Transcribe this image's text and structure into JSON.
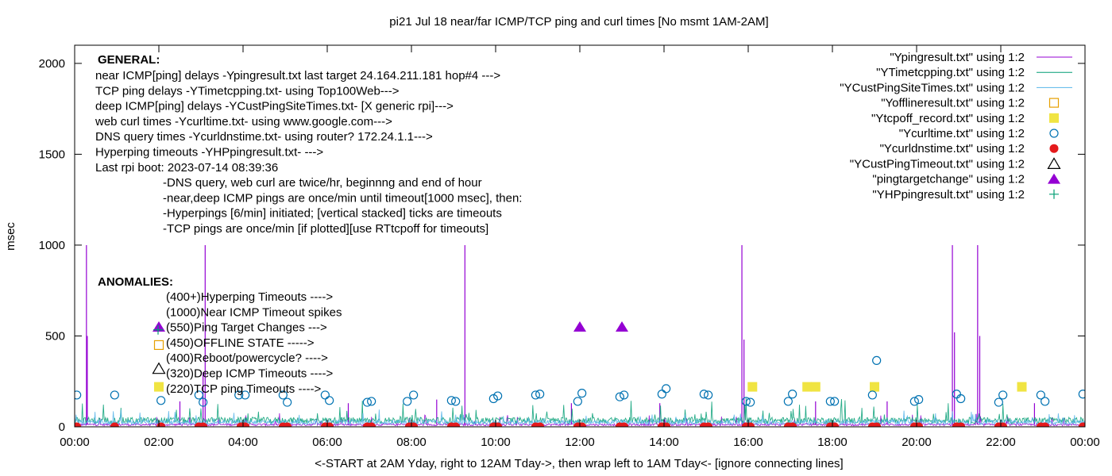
{
  "chart_data": {
    "type": "line",
    "title": "pi21 Jul 18  near/far ICMP/TCP ping and curl times [No msmt 1AM-2AM]",
    "xlabel": "<-START at 2AM Yday, right to 12AM Tday->, then wrap left to 1AM Tday<- [ignore connecting lines]",
    "ylabel": "msec",
    "x_unit": "hours",
    "xlim": [
      0,
      24
    ],
    "ylim": [
      0,
      2100
    ],
    "y_ticks": [
      0,
      500,
      1000,
      1500,
      2000
    ],
    "y_tick_labels": [
      "0",
      "500",
      "1000",
      "1500",
      "2000"
    ],
    "x_ticks": [
      0,
      2,
      4,
      6,
      8,
      10,
      12,
      14,
      16,
      18,
      20,
      22,
      24
    ],
    "x_tick_labels": [
      "00:00",
      "02:00",
      "04:00",
      "06:00",
      "08:00",
      "10:00",
      "12:00",
      "14:00",
      "16:00",
      "18:00",
      "20:00",
      "22:00",
      "00:00"
    ],
    "grid": false,
    "legend_position": "top-right",
    "series": [
      {
        "name": "\"Ypingresult.txt\" using 1:2",
        "style": "line",
        "color": "#9400d3",
        "baseline": 12,
        "spikes": [
          {
            "x": 0.28,
            "y": 1000
          },
          {
            "x": 0.3,
            "y": 500
          },
          {
            "x": 3.1,
            "y": 1000
          },
          {
            "x": 3.05,
            "y": 300
          },
          {
            "x": 9.27,
            "y": 1000
          },
          {
            "x": 15.85,
            "y": 1000
          },
          {
            "x": 15.9,
            "y": 480
          },
          {
            "x": 20.85,
            "y": 1000
          },
          {
            "x": 20.9,
            "y": 520
          },
          {
            "x": 21.45,
            "y": 1000
          },
          {
            "x": 21.5,
            "y": 500
          },
          {
            "x": 2.5,
            "y": 140
          },
          {
            "x": 6.5,
            "y": 130
          },
          {
            "x": 8.6,
            "y": 150
          },
          {
            "x": 11.8,
            "y": 130
          },
          {
            "x": 13.9,
            "y": 130
          },
          {
            "x": 17.6,
            "y": 140
          },
          {
            "x": 19.3,
            "y": 140
          },
          {
            "x": 22.8,
            "y": 130
          }
        ]
      },
      {
        "name": "\"YTimetcpping.txt\" using 1:2",
        "style": "line",
        "color": "#009e73",
        "baseline": 35
      },
      {
        "name": "\"YCustPingSiteTimes.txt\" using 1:2",
        "style": "line",
        "color": "#56b4e9",
        "baseline": 25
      },
      {
        "name": "\"Yofflineresult.txt\" using 1:2",
        "style": "open-square",
        "color": "#e69f00",
        "points": []
      },
      {
        "name": "\"Ytcpoff_record.txt\" using 1:2",
        "style": "filled-square",
        "color": "#f0e442",
        "points": [
          [
            16.1,
            220
          ],
          [
            17.4,
            220
          ],
          [
            17.6,
            220
          ],
          [
            19.0,
            220
          ],
          [
            22.5,
            220
          ]
        ]
      },
      {
        "name": "\"Ycurltime.txt\" using 1:2",
        "style": "open-circle",
        "color": "#0072b2",
        "points": [
          [
            0.05,
            175
          ],
          [
            0.95,
            175
          ],
          [
            2.05,
            145
          ],
          [
            2.95,
            175
          ],
          [
            3.05,
            135
          ],
          [
            3.9,
            175
          ],
          [
            4.05,
            175
          ],
          [
            4.95,
            175
          ],
          [
            5.05,
            135
          ],
          [
            5.95,
            175
          ],
          [
            6.05,
            145
          ],
          [
            6.95,
            135
          ],
          [
            7.05,
            140
          ],
          [
            7.9,
            140
          ],
          [
            8.05,
            175
          ],
          [
            8.95,
            145
          ],
          [
            9.05,
            140
          ],
          [
            9.95,
            155
          ],
          [
            10.05,
            170
          ],
          [
            10.95,
            175
          ],
          [
            11.05,
            180
          ],
          [
            11.95,
            140
          ],
          [
            12.05,
            185
          ],
          [
            12.95,
            165
          ],
          [
            13.05,
            175
          ],
          [
            13.95,
            180
          ],
          [
            14.05,
            210
          ],
          [
            14.95,
            180
          ],
          [
            15.05,
            175
          ],
          [
            15.95,
            140
          ],
          [
            16.05,
            135
          ],
          [
            16.95,
            140
          ],
          [
            17.05,
            180
          ],
          [
            17.95,
            140
          ],
          [
            18.05,
            140
          ],
          [
            18.95,
            175
          ],
          [
            19.05,
            365
          ],
          [
            19.95,
            140
          ],
          [
            20.05,
            150
          ],
          [
            20.95,
            180
          ],
          [
            21.05,
            155
          ],
          [
            21.95,
            135
          ],
          [
            22.05,
            175
          ],
          [
            22.95,
            175
          ],
          [
            23.05,
            140
          ],
          [
            23.95,
            180
          ]
        ]
      },
      {
        "name": "\"Ycurldnstime.txt\" using 1:2",
        "style": "filled-circle",
        "color": "#e41a1c",
        "points": [
          [
            0.05,
            0
          ],
          [
            0.95,
            0
          ],
          [
            2.05,
            0
          ],
          [
            2.95,
            0
          ],
          [
            3.05,
            0
          ],
          [
            3.95,
            0
          ],
          [
            4.05,
            0
          ],
          [
            4.95,
            0
          ],
          [
            5.05,
            0
          ],
          [
            5.95,
            0
          ],
          [
            6.05,
            0
          ],
          [
            6.95,
            0
          ],
          [
            7.05,
            0
          ],
          [
            7.95,
            0
          ],
          [
            8.05,
            0
          ],
          [
            8.95,
            0
          ],
          [
            9.05,
            0
          ],
          [
            9.95,
            0
          ],
          [
            10.05,
            0
          ],
          [
            10.95,
            0
          ],
          [
            11.05,
            0
          ],
          [
            11.95,
            0
          ],
          [
            12.05,
            0
          ],
          [
            12.95,
            0
          ],
          [
            13.05,
            0
          ],
          [
            13.95,
            0
          ],
          [
            14.05,
            0
          ],
          [
            14.95,
            0
          ],
          [
            15.05,
            0
          ],
          [
            15.95,
            0
          ],
          [
            16.05,
            0
          ],
          [
            16.95,
            0
          ],
          [
            17.05,
            0
          ],
          [
            17.95,
            0
          ],
          [
            18.05,
            0
          ],
          [
            18.95,
            0
          ],
          [
            19.05,
            0
          ],
          [
            19.95,
            0
          ],
          [
            20.05,
            0
          ],
          [
            20.95,
            0
          ],
          [
            21.05,
            0
          ],
          [
            21.95,
            0
          ],
          [
            22.05,
            0
          ],
          [
            22.95,
            0
          ],
          [
            23.05,
            0
          ],
          [
            23.95,
            0
          ]
        ]
      },
      {
        "name": "\"YCustPingTimeout.txt\" using 1:2",
        "style": "open-triangle",
        "color": "#000000",
        "points": []
      },
      {
        "name": "\"pingtargetchange\" using 1:2",
        "style": "filled-triangle",
        "color": "#9400d3",
        "points": [
          [
            12.0,
            550
          ],
          [
            13.0,
            550
          ]
        ]
      },
      {
        "name": "\"YHPpingresult.txt\" using 1:2",
        "style": "plus",
        "color": "#009e73",
        "points": []
      }
    ],
    "annotations": {
      "general_heading": "GENERAL:",
      "general_lines": [
        "near ICMP[ping] delays -Ypingresult.txt last target 24.164.211.181 hop#4 --->",
        "TCP ping delays -YTimetcpping.txt- using Top100Web--->",
        "deep ICMP[ping] delays -YCustPingSiteTimes.txt- [X generic rpi]--->",
        "web curl times -Ycurltime.txt- using www.google.com--->",
        "DNS query times -Ycurldnstime.txt- using router? 172.24.1.1--->",
        "Hyperping timeouts -YHPpingresult.txt- --->",
        "Last rpi boot: 2023-07-14 08:39:36"
      ],
      "general_notes": [
        "-DNS query, web curl are twice/hr, beginnng and end of hour",
        "-near,deep ICMP pings are once/min until timeout[1000 msec], then:",
        "  -Hyperpings [6/min] initiated; [vertical stacked] ticks are timeouts",
        "-TCP pings are once/min [if plotted][use RTtcpoff for timeouts]"
      ],
      "anomalies_heading": "ANOMALIES:",
      "anomaly_lines": [
        {
          "text": "(400+)Hyperping Timeouts ---->",
          "marker": "",
          "marker_value": 0
        },
        {
          "text": "(1000)Near ICMP Timeout spikes",
          "marker": "",
          "marker_value": 0
        },
        {
          "text": "(550)Ping Target Changes --->",
          "marker": "filled-triangle",
          "marker_value": 550
        },
        {
          "text": "(450)OFFLINE STATE ----->",
          "marker": "open-square",
          "marker_value": 450
        },
        {
          "text": "(400)Reboot/powercycle? ---->",
          "marker": "",
          "marker_value": 0
        },
        {
          "text": "(320)Deep ICMP Timeouts ---->",
          "marker": "open-triangle",
          "marker_value": 320
        },
        {
          "text": "(220)TCP ping Timeouts ---->",
          "marker": "filled-square",
          "marker_value": 220
        }
      ],
      "anomaly_extra_markers": [
        {
          "style": "plus",
          "color": "#009e73",
          "x": 2.0,
          "y": 490
        }
      ]
    }
  }
}
